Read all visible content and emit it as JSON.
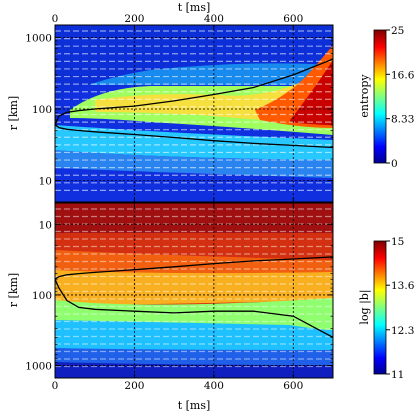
{
  "chart_data": [
    {
      "type": "heatmap",
      "panel": "top",
      "xlabel": "t [ms]",
      "ylabel": "r [km]",
      "xlim": [
        0,
        700
      ],
      "ylim": [
        5,
        1500
      ],
      "yscale": "log",
      "x_ticks": [
        0,
        200,
        400,
        600
      ],
      "x_tick_labels": [
        "0",
        "200",
        "400",
        "600"
      ],
      "y_ticks": [
        10,
        100,
        1000
      ],
      "y_tick_labels": [
        "10",
        "100",
        "1000"
      ],
      "colorbar": {
        "label": "entropy",
        "range": [
          0,
          25
        ],
        "ticks": [
          0,
          8.33,
          16.67,
          25
        ],
        "tick_labels": [
          "0",
          "8.33",
          "16.67",
          "25"
        ],
        "colormap": "jet"
      },
      "contours": [
        {
          "style": "solid",
          "color": "#000000",
          "t": [
            0,
            10,
            30,
            60,
            100,
            200,
            300,
            400,
            500,
            600,
            700
          ],
          "r": [
            60,
            80,
            90,
            95,
            100,
            110,
            130,
            160,
            200,
            300,
            500
          ]
        },
        {
          "style": "solid",
          "color": "#000000",
          "t": [
            0,
            10,
            30,
            60,
            100,
            200,
            300,
            400,
            500,
            600,
            700
          ],
          "r": [
            60,
            55,
            52,
            50,
            48,
            44,
            40,
            36,
            33,
            31,
            29
          ]
        }
      ]
    },
    {
      "type": "heatmap",
      "panel": "bottom",
      "xlabel": "t [ms]",
      "ylabel": "r [km]",
      "xlim": [
        0,
        700
      ],
      "ylim": [
        1500,
        5
      ],
      "yscale": "log",
      "y_inverted": true,
      "x_ticks": [
        0,
        200,
        400,
        600
      ],
      "x_tick_labels": [
        "0",
        "200",
        "400",
        "600"
      ],
      "y_ticks": [
        10,
        100,
        1000
      ],
      "y_tick_labels": [
        "10",
        "100",
        "1000"
      ],
      "colorbar": {
        "label": "log |b|",
        "range": [
          11,
          15
        ],
        "ticks": [
          11,
          12.33,
          13.67,
          15
        ],
        "tick_labels": [
          "11",
          "12.33",
          "13.67",
          "15"
        ],
        "colormap": "jet"
      },
      "contours": [
        {
          "style": "solid",
          "color": "#000000",
          "t": [
            0,
            10,
            30,
            60,
            100,
            200,
            300,
            400,
            500,
            600,
            700
          ],
          "r": [
            60,
            80,
            120,
            150,
            160,
            170,
            180,
            170,
            170,
            200,
            400
          ]
        },
        {
          "style": "solid",
          "color": "#000000",
          "t": [
            0,
            10,
            30,
            60,
            100,
            200,
            300,
            400,
            500,
            600,
            700
          ],
          "r": [
            60,
            55,
            52,
            50,
            48,
            44,
            40,
            36,
            33,
            31,
            29
          ]
        }
      ]
    }
  ]
}
